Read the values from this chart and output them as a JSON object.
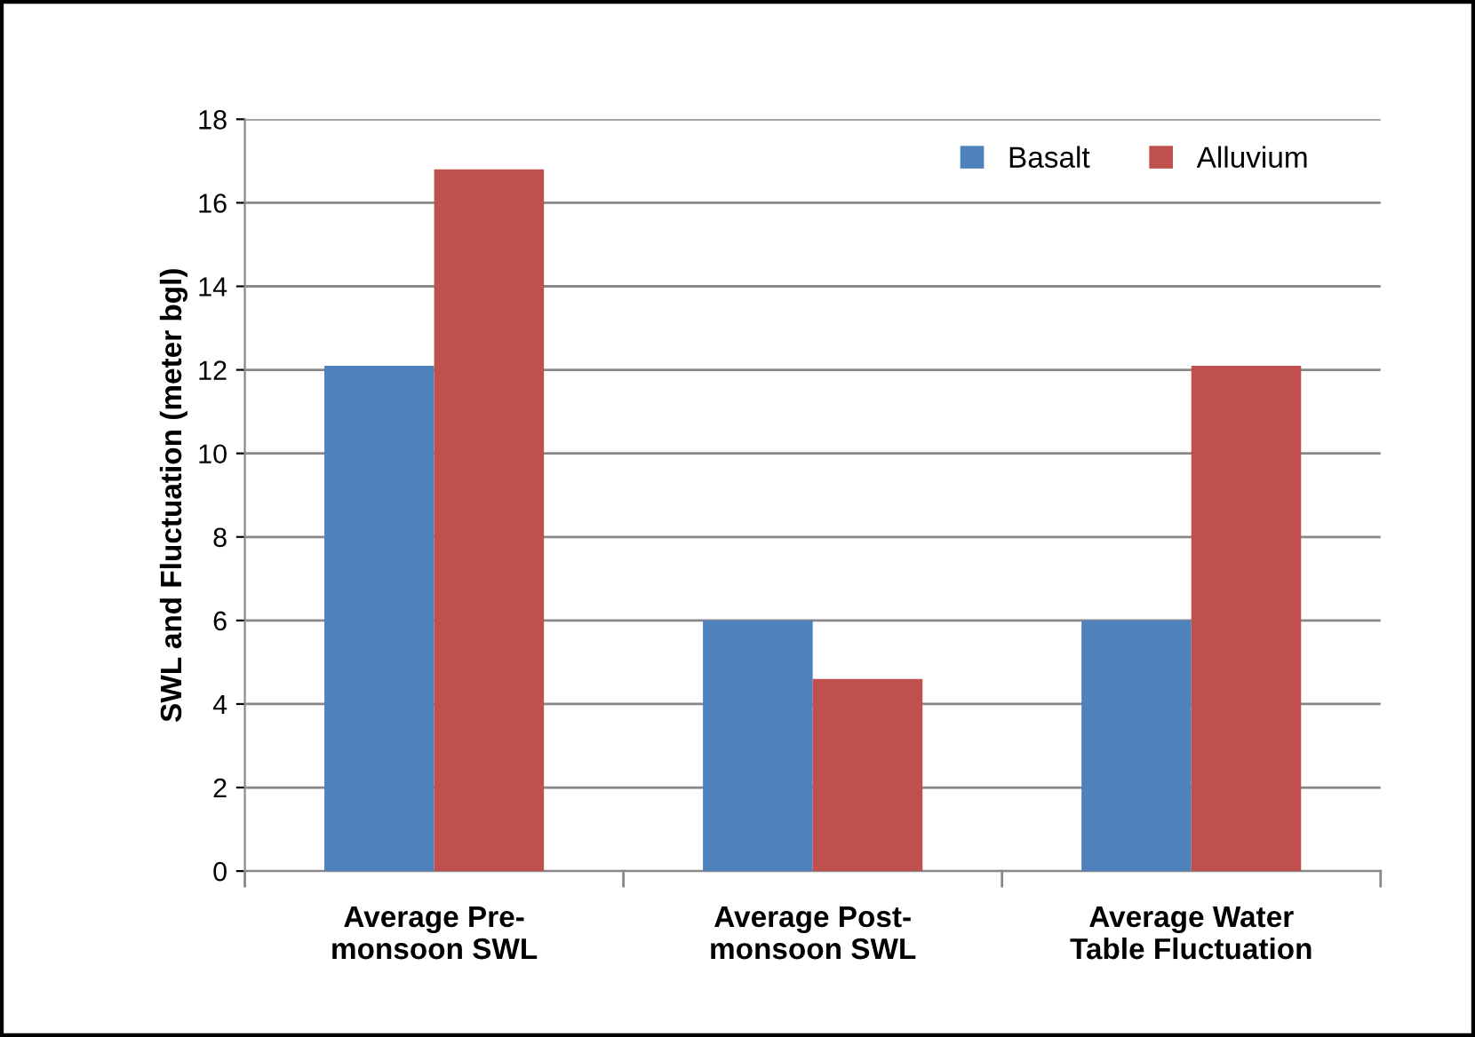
{
  "chart_data": {
    "type": "bar",
    "ylabel": "SWL and Fluctuation (meter bgl)",
    "categories": [
      "Average Pre-\nmonsoon SWL",
      "Average Post-\nmonsoon SWL",
      "Average Water\nTable Fluctuation"
    ],
    "series": [
      {
        "name": "Basalt",
        "color": "#4f81bd",
        "values": [
          12.1,
          6.0,
          6.0
        ]
      },
      {
        "name": "Alluvium",
        "color": "#c0504d",
        "values": [
          16.8,
          4.6,
          12.1
        ]
      }
    ],
    "ylim": [
      0,
      18
    ],
    "yticks": [
      0,
      2,
      4,
      6,
      8,
      10,
      12,
      14,
      16,
      18
    ],
    "grid": "y",
    "legend": "top right"
  }
}
